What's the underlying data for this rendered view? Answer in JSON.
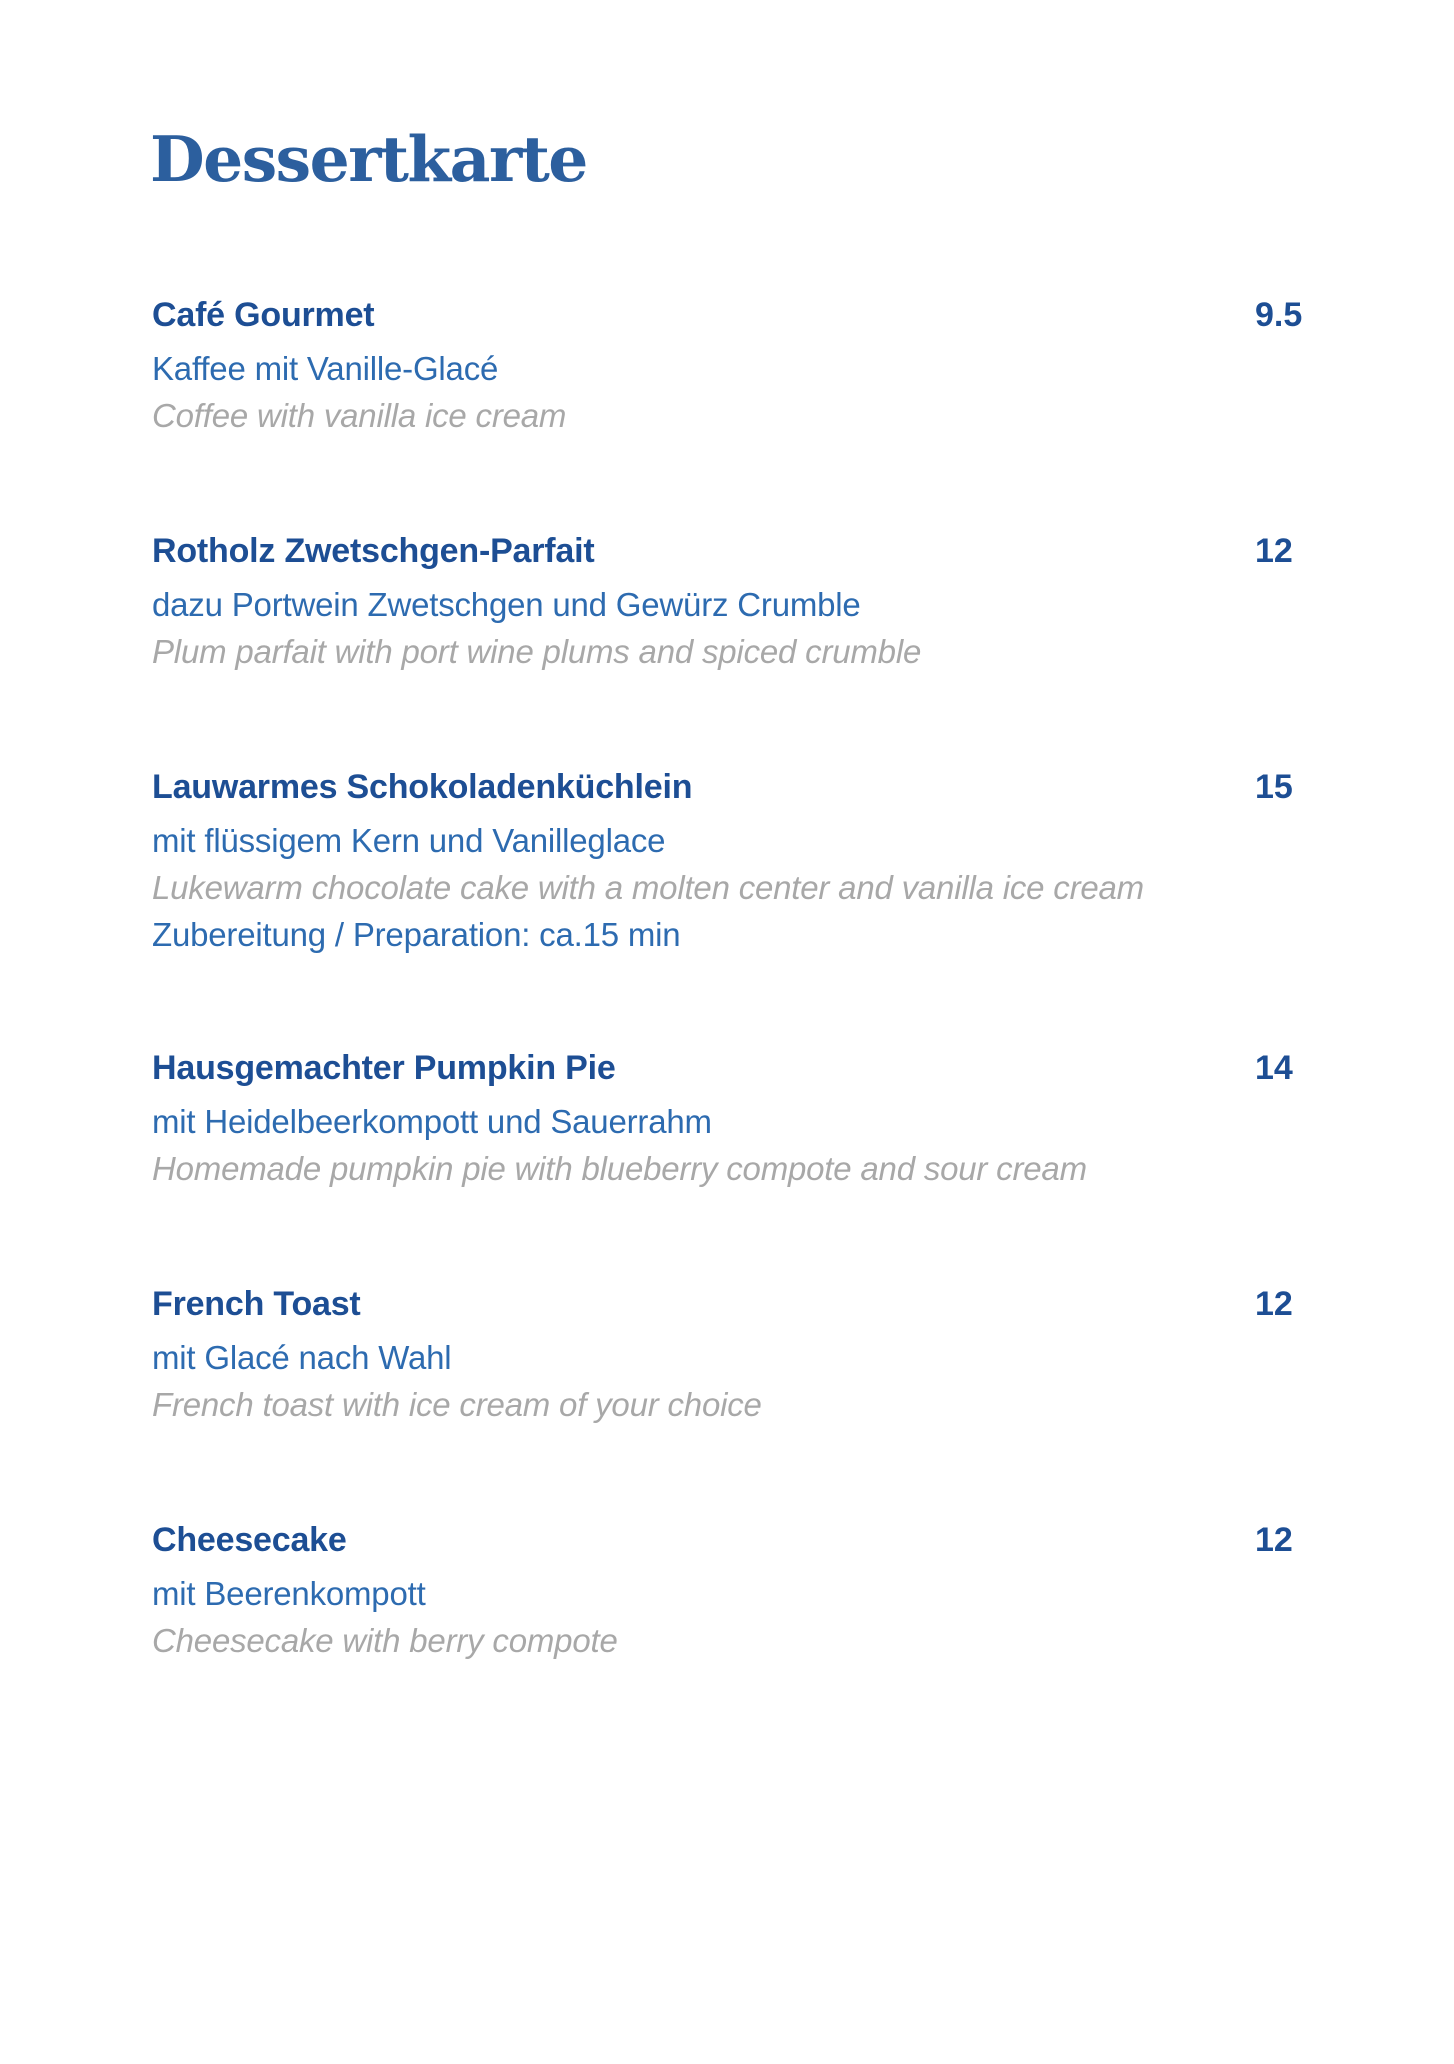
{
  "page": {
    "title": "Dessertkarte",
    "colors": {
      "title_blue": "#2c5f9e",
      "name_blue": "#1d4e94",
      "desc_blue": "#2d6bb0",
      "english_gray": "#a8a8a8"
    }
  },
  "menu": {
    "items": [
      {
        "name": "Café Gourmet",
        "price": "9.5",
        "description_de": "Kaffee mit Vanille-Glacé",
        "description_en": "Coffee with vanilla ice cream"
      },
      {
        "name": "Rotholz Zwetschgen-Parfait",
        "price": "12",
        "description_de": "dazu Portwein Zwetschgen und Gewürz Crumble",
        "description_en": "Plum parfait with port wine plums and spiced crumble"
      },
      {
        "name": "Lauwarmes Schokoladenküchlein",
        "price": "15",
        "description_de": "mit flüssigem Kern und Vanilleglace",
        "description_en": "Lukewarm chocolate cake with a molten center and vanilla ice cream",
        "note": "Zubereitung / Preparation: ca.15 min"
      },
      {
        "name": "Hausgemachter Pumpkin Pie",
        "price": "14",
        "description_de": "mit Heidelbeerkompott und Sauerrahm",
        "description_en": "Homemade pumpkin pie with blueberry compote and sour cream"
      },
      {
        "name": "French Toast",
        "price": "12",
        "description_de": "mit Glacé nach Wahl",
        "description_en": "French toast with ice cream of your choice"
      },
      {
        "name": "Cheesecake",
        "price": "12",
        "description_de": "mit Beerenkompott",
        "description_en": "Cheesecake with berry compote"
      }
    ]
  }
}
